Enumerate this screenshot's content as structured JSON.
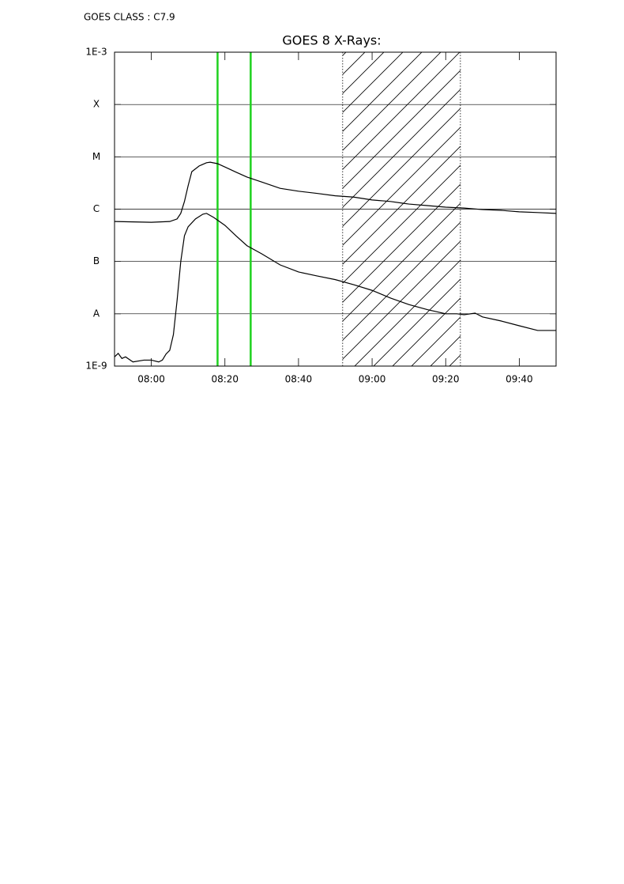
{
  "chart_data": {
    "type": "line",
    "annotation": "GOES CLASS : C7.9",
    "title": "GOES 8 X-Rays:",
    "log_y": true,
    "grid": true,
    "xlim": [
      "07:50",
      "09:50"
    ],
    "xticks": [
      "08:00",
      "08:20",
      "08:40",
      "09:00",
      "09:20",
      "09:40"
    ],
    "ylim": [
      1e-09,
      0.001
    ],
    "yticks": [
      {
        "value": 1e-09,
        "label": "1E-9"
      },
      {
        "value": 1e-08,
        "label": "A"
      },
      {
        "value": 1e-07,
        "label": "B"
      },
      {
        "value": 1e-06,
        "label": "C"
      },
      {
        "value": 1e-05,
        "label": "M"
      },
      {
        "value": 0.0001,
        "label": "X"
      },
      {
        "value": 0.001,
        "label": "1E-3"
      }
    ],
    "vlines": [
      "08:18",
      "08:27"
    ],
    "vline_color": "#1fd21f",
    "hatched_span": [
      "08:52",
      "09:24"
    ],
    "series": [
      {
        "color": "#000000",
        "x": [
          "07:50",
          "07:55",
          "08:00",
          "08:05",
          "08:07",
          "08:08",
          "08:09",
          "08:10",
          "08:11",
          "08:13",
          "08:15",
          "08:16",
          "08:18",
          "08:20",
          "08:23",
          "08:26",
          "08:30",
          "08:35",
          "08:40",
          "08:45",
          "08:50",
          "08:55",
          "09:00",
          "09:05",
          "09:10",
          "09:15",
          "09:20",
          "09:25",
          "09:30",
          "09:35",
          "09:40",
          "09:45",
          "09:50"
        ],
        "values": [
          5.8e-07,
          5.7e-07,
          5.6e-07,
          5.8e-07,
          6.5e-07,
          8.3e-07,
          1.4e-06,
          2.8e-06,
          5.2e-06,
          6.7e-06,
          7.7e-06,
          7.9e-06,
          7.4e-06,
          6.4e-06,
          5.1e-06,
          4.1e-06,
          3.3e-06,
          2.5e-06,
          2.2e-06,
          2e-06,
          1.8e-06,
          1.7e-06,
          1.5e-06,
          1.4e-06,
          1.25e-06,
          1.17e-06,
          1.09e-06,
          1.05e-06,
          9.8e-07,
          9.5e-07,
          8.9e-07,
          8.6e-07,
          8.3e-07
        ]
      },
      {
        "color": "#000000",
        "x": [
          "07:50",
          "07:51",
          "07:52",
          "07:53",
          "07:55",
          "07:58",
          "08:00",
          "08:02",
          "08:03",
          "08:04",
          "08:05",
          "08:06",
          "08:07",
          "08:08",
          "08:09",
          "08:10",
          "08:12",
          "08:14",
          "08:15",
          "08:17",
          "08:20",
          "08:23",
          "08:26",
          "08:30",
          "08:35",
          "08:40",
          "08:45",
          "08:50",
          "08:55",
          "09:00",
          "09:05",
          "09:10",
          "09:15",
          "09:20",
          "09:23",
          "09:25",
          "09:28",
          "09:30",
          "09:35",
          "09:40",
          "09:45",
          "09:50"
        ],
        "values": [
          1.5e-09,
          1.75e-09,
          1.4e-09,
          1.5e-09,
          1.2e-09,
          1.3e-09,
          1.3e-09,
          1.2e-09,
          1.3e-09,
          1.7e-09,
          2e-09,
          4e-09,
          1.8e-08,
          1e-07,
          3.1e-07,
          4.6e-07,
          6.5e-07,
          8e-07,
          8.3e-07,
          6.9e-07,
          4.9e-07,
          3.1e-07,
          2e-07,
          1.4e-07,
          8.6e-08,
          6.3e-08,
          5.3e-08,
          4.5e-08,
          3.6e-08,
          2.8e-08,
          2e-08,
          1.5e-08,
          1.2e-08,
          1e-08,
          1e-08,
          9.6e-09,
          1.03e-08,
          8.7e-09,
          7.3e-09,
          5.9e-09,
          4.8e-09,
          4.8e-09
        ]
      }
    ]
  }
}
